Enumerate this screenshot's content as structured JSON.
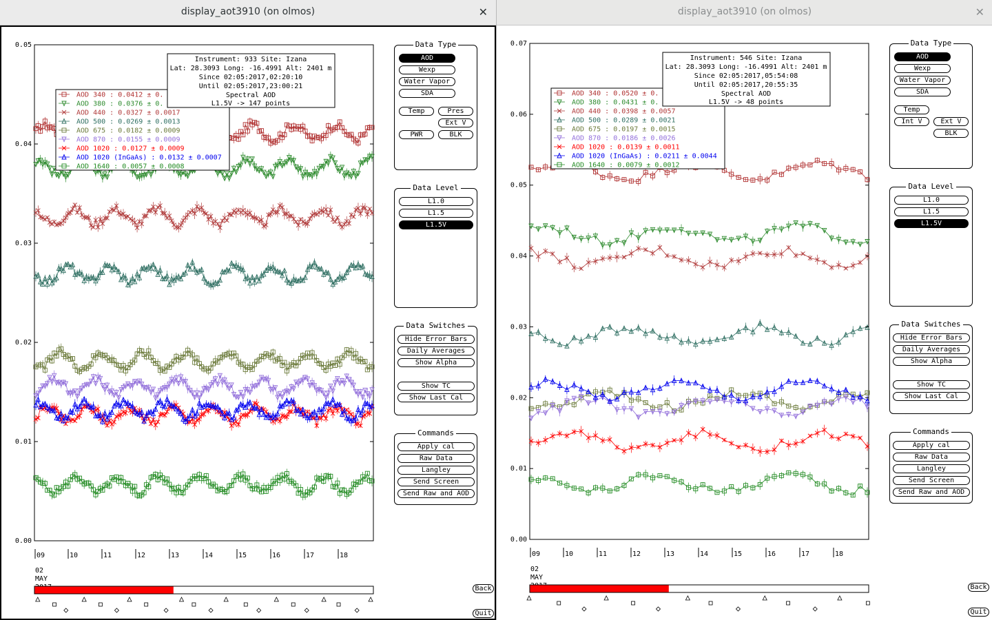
{
  "windows": [
    {
      "title": "display_aot3910 (on olmos)",
      "close_glyph": "✕",
      "info": {
        "line1": "Instrument: 933 Site: Izana",
        "line2": "Lat: 28.3093 Long: -16.4991 Alt: 2401 m",
        "line3": "Since 02:05:2017,02:20:10",
        "line4": "Until 02:05:2017,23:00:21",
        "line5": "Spectral AOD",
        "line6": "L1.5V -> 147 points"
      },
      "legend": [
        {
          "label": "AOD 340   : 0.0412 ± 0.",
          "color": "#b03030",
          "marker": "square"
        },
        {
          "label": "AOD 380   : 0.0376 ± 0.",
          "color": "#2e8b2e",
          "marker": "tri-down"
        },
        {
          "label": "AOD 440   : 0.0327 ± 0.0017",
          "color": "#b03a3a",
          "marker": "x"
        },
        {
          "label": "AOD 500   : 0.0269 ± 0.0013",
          "color": "#2f6f62",
          "marker": "tri-up"
        },
        {
          "label": "AOD 675   : 0.0182 ± 0.0009",
          "color": "#6b7a3a",
          "marker": "square"
        },
        {
          "label": "AOD 870   : 0.0155 ± 0.0009",
          "color": "#9370db",
          "marker": "tri-down"
        },
        {
          "label": "AOD 1020  : 0.0127 ± 0.0009",
          "color": "#ff0000",
          "marker": "x"
        },
        {
          "label": "AOD 1020 (InGaAs)  : 0.0132 ± 0.0007",
          "color": "#0000ee",
          "marker": "tri-up"
        },
        {
          "label": "AOD 1640  : 0.0057 ± 0.0008",
          "color": "#228b22",
          "marker": "square"
        }
      ],
      "y_axis": {
        "min": 0.0,
        "max": 0.05,
        "ticks": [
          "0.00",
          "0.01",
          "0.02",
          "0.03",
          "0.04",
          "0.05"
        ]
      },
      "x_ticks": [
        "09",
        "10",
        "11",
        "12",
        "13",
        "14",
        "15",
        "16",
        "17",
        "18"
      ],
      "x_date": [
        "02",
        "MAY",
        "2017"
      ],
      "progress_fraction": 0.41,
      "series_levels": [
        0.0412,
        0.0376,
        0.0327,
        0.0269,
        0.0182,
        0.0155,
        0.0127,
        0.0132,
        0.0057
      ],
      "n_points": 147
    },
    {
      "title": "display_aot3910 (on olmos)",
      "close_glyph": "✕",
      "info": {
        "line1": "Instrument: 546 Site: Izana",
        "line2": "Lat: 28.3093 Long: -16.4991 Alt: 2401 m",
        "line3": "Since 02:05:2017,05:54:08",
        "line4": "Until 02:05:2017,20:55:35",
        "line5": "Spectral AOD",
        "line6": "L1.5V -> 48 points"
      },
      "legend": [
        {
          "label": "AOD 340   : 0.0520 ± 0.",
          "color": "#b03030",
          "marker": "square"
        },
        {
          "label": "AOD 380   : 0.0431 ± 0.",
          "color": "#2e8b2e",
          "marker": "tri-down"
        },
        {
          "label": "AOD 440   : 0.0398 ± 0.0057",
          "color": "#b03a3a",
          "marker": "x"
        },
        {
          "label": "AOD 500   : 0.0289 ± 0.0021",
          "color": "#2f6f62",
          "marker": "tri-up"
        },
        {
          "label": "AOD 675   : 0.0197 ± 0.0015",
          "color": "#6b7a3a",
          "marker": "square"
        },
        {
          "label": "AOD 870   : 0.0186 ± 0.0026",
          "color": "#9370db",
          "marker": "tri-down"
        },
        {
          "label": "AOD 1020  : 0.0139 ± 0.0011",
          "color": "#ff0000",
          "marker": "x"
        },
        {
          "label": "AOD 1020 (InGaAs)  : 0.0211 ± 0.0044",
          "color": "#0000ee",
          "marker": "tri-up"
        },
        {
          "label": "AOD 1640  : 0.0079 ± 0.0012",
          "color": "#228b22",
          "marker": "square"
        }
      ],
      "y_axis": {
        "min": 0.0,
        "max": 0.07,
        "ticks": [
          "0.00",
          "0.01",
          "0.02",
          "0.03",
          "0.04",
          "0.05",
          "0.06",
          "0.07"
        ]
      },
      "x_ticks": [
        "09",
        "10",
        "11",
        "12",
        "13",
        "14",
        "15",
        "16",
        "17",
        "18"
      ],
      "x_date": [
        "02",
        "MAY",
        "2017"
      ],
      "progress_fraction": 0.41,
      "series_levels": [
        0.052,
        0.0431,
        0.0398,
        0.0289,
        0.0197,
        0.0186,
        0.0139,
        0.0211,
        0.0079
      ],
      "n_points": 48
    }
  ],
  "panels": {
    "data_type": {
      "title": "Data Type",
      "aod": "AOD",
      "wexp": "Wexp",
      "water_vapor": "Water Vapor",
      "sda": "SDA",
      "temp": "Temp",
      "pres": "Pres",
      "ext_v": "Ext V",
      "pwr": "PWR",
      "blk": "BLK",
      "int_v": "Int V"
    },
    "data_level": {
      "title": "Data Level",
      "l10": "L1.0",
      "l15": "L1.5",
      "l15v": "L1.5V"
    },
    "data_switches": {
      "title": "Data Switches",
      "hide_error_bars": "Hide Error Bars",
      "daily_averages": "Daily Averages",
      "show_alpha": "Show Alpha",
      "show_tc": "Show TC",
      "show_last_cal": "Show Last Cal"
    },
    "commands": {
      "title": "Commands",
      "apply_cal": "Apply cal",
      "raw_data": "Raw Data",
      "langley": "Langley",
      "send_screen": "Send Screen",
      "send_raw_and_aod": "Send Raw and AOD"
    }
  },
  "bottom": {
    "back": "Back",
    "quit": "Quit"
  },
  "colors": {
    "progress_fill": "#ff0000",
    "plot_border": "#000000"
  }
}
